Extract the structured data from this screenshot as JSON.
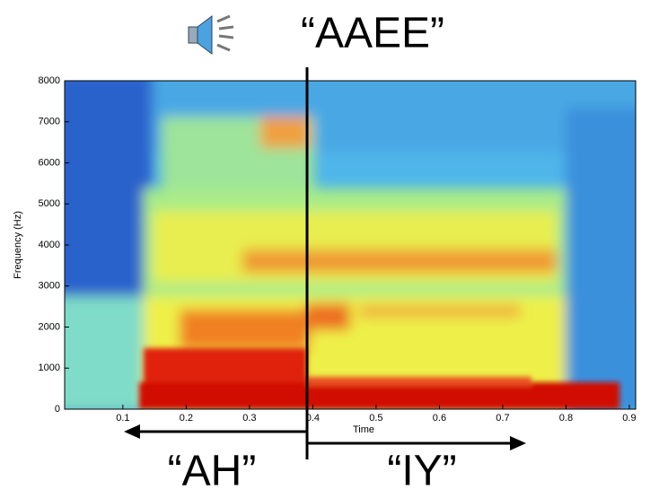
{
  "chart_data": {
    "type": "spectrogram",
    "title": "“AAEE”",
    "x_label": "Time",
    "y_label": "Frequency (Hz)",
    "xlim": [
      0.008,
      0.91
    ],
    "ylim": [
      0,
      8000
    ],
    "xticks": [
      0.1,
      0.2,
      0.3,
      0.4,
      0.5,
      0.6,
      0.7,
      0.8,
      0.9
    ],
    "yticks": [
      0,
      1000,
      2000,
      3000,
      4000,
      5000,
      6000,
      7000,
      8000
    ],
    "annotations": [
      "“AH”",
      "“IY”"
    ]
  }
}
